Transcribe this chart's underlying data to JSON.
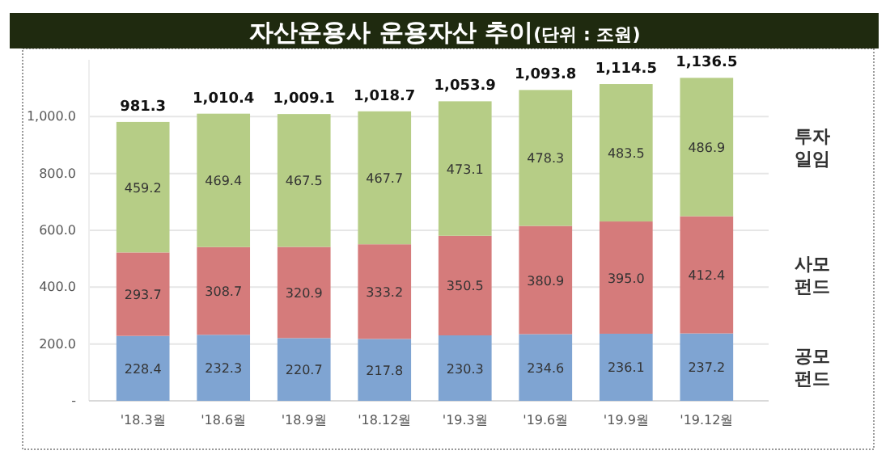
{
  "chart_data": {
    "type": "bar",
    "stacked": true,
    "title": "자산운용사 운용자산 추이",
    "subtitle": "(단위 : 조원)",
    "categories": [
      "'18.3월",
      "'18.6월",
      "'18.9월",
      "'18.12월",
      "'19.3월",
      "'19.6월",
      "'19.9월",
      "'19.12월"
    ],
    "series": [
      {
        "name": "공모펀드",
        "color": "#7fa4d2",
        "values": [
          228.4,
          232.3,
          220.7,
          217.8,
          230.3,
          234.6,
          236.1,
          237.2
        ],
        "value_labels": [
          "228.4",
          "232.3",
          "220.7",
          "217.8",
          "230.3",
          "234.6",
          "236.1",
          "237.2"
        ]
      },
      {
        "name": "사모펀드",
        "color": "#d57b7b",
        "values": [
          293.7,
          308.7,
          320.9,
          333.2,
          350.5,
          380.9,
          395.0,
          412.4
        ],
        "value_labels": [
          "293.7",
          "308.7",
          "320.9",
          "333.2",
          "350.5",
          "380.9",
          "395.0",
          "412.4"
        ]
      },
      {
        "name": "투자일임",
        "color": "#b6cd86",
        "values": [
          459.2,
          469.4,
          467.5,
          467.7,
          473.1,
          478.3,
          483.5,
          486.9
        ],
        "value_labels": [
          "459.2",
          "469.4",
          "467.5",
          "467.7",
          "473.1",
          "478.3",
          "483.5",
          "486.9"
        ]
      }
    ],
    "totals": [
      "981.3",
      "1,010.4",
      "1,009.1",
      "1,018.7",
      "1,053.9",
      "1,093.8",
      "1,114.5",
      "1,136.5"
    ],
    "ylim": [
      0,
      1200
    ],
    "yticks": [
      {
        "value": 0,
        "label": "-"
      },
      {
        "value": 200,
        "label": "200.0"
      },
      {
        "value": 400,
        "label": "400.0"
      },
      {
        "value": 600,
        "label": "600.0"
      },
      {
        "value": 800,
        "label": "800.0"
      },
      {
        "value": 1000,
        "label": "1,000.0"
      }
    ],
    "grid": "y"
  }
}
